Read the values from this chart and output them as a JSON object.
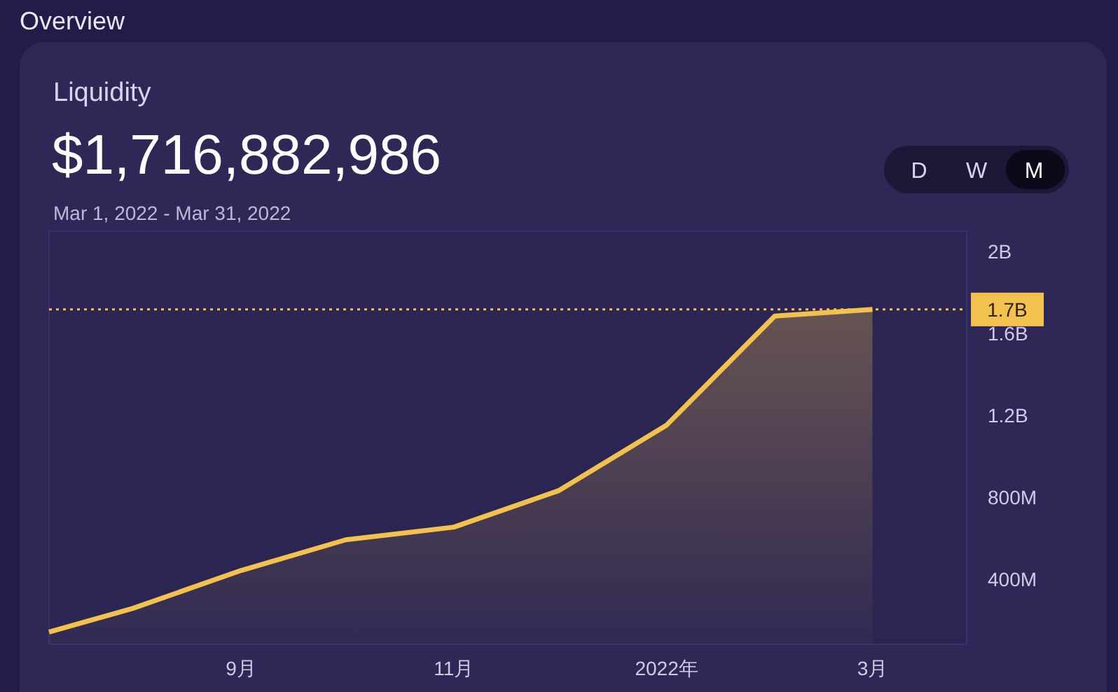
{
  "chart_data": {
    "type": "area",
    "title": "Liquidity",
    "subtitle": "$1,716,882,986",
    "annotations": [
      "Overview",
      "Mar 1, 2022 - Mar 31, 2022",
      "D",
      "W",
      "M"
    ],
    "x": [
      "2021-07-08",
      "2021-08-01",
      "2021-09-01",
      "2021-10-01",
      "2021-11-01",
      "2021-12-01",
      "2022-01-01",
      "2022-02-01",
      "2022-03-01"
    ],
    "series": [
      {
        "color": "#f2c14e",
        "values": [
          140000000,
          256000000,
          441000000,
          591000000,
          653000000,
          831000000,
          1152000000,
          1685000000,
          1717000000
        ]
      }
    ],
    "xlim": [
      "2021-07-08",
      "2022-03-28"
    ],
    "xticks": [
      {
        "value": "2021-09-01",
        "label": "9月"
      },
      {
        "value": "2021-11-01",
        "label": "11月"
      },
      {
        "value": "2022-01-01",
        "label": "2022年"
      },
      {
        "value": "2022-03-01",
        "label": "3月"
      }
    ],
    "ylim": [
      80000000,
      2100000000
    ],
    "yticks": [
      {
        "value": 400000000,
        "label": "400M"
      },
      {
        "value": 800000000,
        "label": "800M"
      },
      {
        "value": 1200000000,
        "label": "1.2B"
      },
      {
        "value": 1600000000,
        "label": "1.6B"
      },
      {
        "value": 2000000000,
        "label": "2B"
      }
    ],
    "ref_lines": [
      {
        "axis": "y",
        "value": 1717000000,
        "label": "1.7B",
        "color": "#f2c14e",
        "line_style": "dotted"
      }
    ],
    "grid": false
  }
}
